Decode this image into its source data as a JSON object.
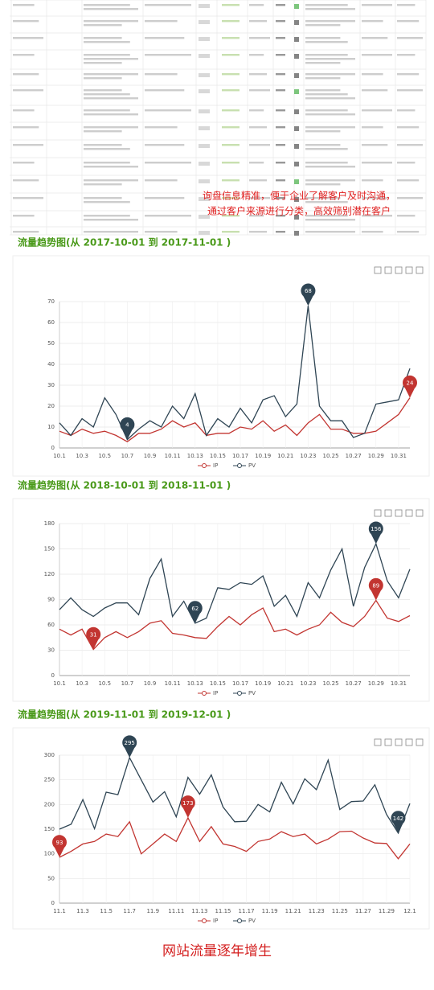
{
  "table_overlay": [
    "询盘信息精准，便于企业了解客户及时沟通，",
    "通过客户来源进行分类，高效筛别潜在客户"
  ],
  "chart_data": [
    {
      "type": "line",
      "title": "流量趋势图(从 2017-10-01 到 2017-11-01 )",
      "categories": [
        "10.1",
        null,
        "10.3",
        null,
        "10.5",
        null,
        "10.7",
        null,
        "10.9",
        null,
        "10.11",
        null,
        "10.13",
        null,
        "10.15",
        null,
        "10.17",
        null,
        "10.19",
        null,
        "10.21",
        null,
        "10.23",
        null,
        "10.25",
        null,
        "10.27",
        null,
        "10.29",
        null,
        "10.31",
        null
      ],
      "series": [
        {
          "name": "IP",
          "color": "#c23531",
          "values": [
            8,
            6,
            9,
            7,
            8,
            6,
            3,
            7,
            7,
            9,
            13,
            10,
            12,
            6,
            7,
            7,
            10,
            9,
            13,
            8,
            11,
            6,
            12,
            16,
            9,
            9,
            7,
            7,
            8,
            12,
            16,
            24
          ]
        },
        {
          "name": "PV",
          "color": "#2f4554",
          "values": [
            12,
            6,
            14,
            10,
            24,
            16,
            4,
            9,
            13,
            10,
            20,
            14,
            26,
            6,
            14,
            10,
            19,
            12,
            23,
            25,
            15,
            21,
            68,
            20,
            13,
            13,
            5,
            7,
            21,
            22,
            23,
            38
          ]
        }
      ],
      "ylim": [
        0,
        70
      ],
      "yticks": [
        0,
        10,
        20,
        30,
        40,
        50,
        60,
        70
      ],
      "grid": true,
      "annotations": [
        {
          "series": "PV",
          "value": 68
        },
        {
          "series": "PV",
          "value": 4
        },
        {
          "series": "IP",
          "value": 24
        }
      ]
    },
    {
      "type": "line",
      "title": "流量趋势图(从 2018-10-01 到 2018-11-01 )",
      "categories": [
        "10.1",
        null,
        "10.3",
        null,
        "10.5",
        null,
        "10.7",
        null,
        "10.9",
        null,
        "10.11",
        null,
        "10.13",
        null,
        "10.15",
        null,
        "10.17",
        null,
        "10.19",
        null,
        "10.21",
        null,
        "10.23",
        null,
        "10.25",
        null,
        "10.27",
        null,
        "10.29",
        null,
        "10.31",
        null
      ],
      "series": [
        {
          "name": "IP",
          "color": "#c23531",
          "values": [
            55,
            48,
            55,
            31,
            45,
            52,
            45,
            52,
            62,
            65,
            50,
            48,
            45,
            44,
            58,
            70,
            60,
            72,
            80,
            52,
            55,
            48,
            55,
            60,
            75,
            63,
            58,
            70,
            89,
            68,
            64,
            71
          ]
        },
        {
          "name": "PV",
          "color": "#2f4554",
          "values": [
            78,
            92,
            78,
            70,
            80,
            86,
            86,
            72,
            115,
            138,
            70,
            88,
            62,
            68,
            104,
            102,
            110,
            108,
            118,
            82,
            95,
            70,
            110,
            92,
            125,
            150,
            82,
            128,
            156,
            112,
            92,
            126
          ]
        }
      ],
      "ylim": [
        0,
        180
      ],
      "yticks": [
        0,
        30,
        60,
        90,
        120,
        150,
        180
      ],
      "grid": true,
      "annotations": [
        {
          "series": "PV",
          "value": 156
        },
        {
          "series": "PV",
          "value": 62
        },
        {
          "series": "IP",
          "value": 31
        },
        {
          "series": "IP",
          "value": 89
        }
      ]
    },
    {
      "type": "line",
      "title": "流量趋势图(从 2019-11-01 到 2019-12-01 )",
      "categories": [
        "11.1",
        null,
        "11.3",
        null,
        "11.5",
        null,
        "11.7",
        null,
        "11.9",
        null,
        "11.11",
        null,
        "11.13",
        null,
        "11.15",
        null,
        "11.17",
        null,
        "11.19",
        null,
        "11.21",
        null,
        "11.23",
        null,
        "11.25",
        null,
        "11.27",
        null,
        "11.29",
        null,
        "12.1"
      ],
      "series": [
        {
          "name": "IP",
          "color": "#c23531",
          "values": [
            93,
            105,
            120,
            125,
            140,
            135,
            165,
            100,
            120,
            140,
            125,
            173,
            125,
            155,
            120,
            115,
            105,
            125,
            130,
            145,
            135,
            140,
            120,
            130,
            145,
            146,
            132,
            122,
            121,
            90,
            120
          ]
        },
        {
          "name": "PV",
          "color": "#2f4554",
          "values": [
            150,
            160,
            210,
            151,
            225,
            220,
            295,
            250,
            205,
            226,
            175,
            255,
            221,
            260,
            195,
            165,
            166,
            200,
            185,
            245,
            201,
            252,
            230,
            290,
            190,
            206,
            207,
            240,
            180,
            142,
            202
          ]
        }
      ],
      "ylim": [
        0,
        300
      ],
      "yticks": [
        0,
        50,
        100,
        150,
        200,
        250,
        300
      ],
      "grid": true,
      "annotations": [
        {
          "series": "PV",
          "value": 295
        },
        {
          "series": "PV",
          "value": 142
        },
        {
          "series": "IP",
          "value": 93
        },
        {
          "series": "IP",
          "value": 173
        }
      ]
    }
  ],
  "caption": "网站流量逐年增生"
}
